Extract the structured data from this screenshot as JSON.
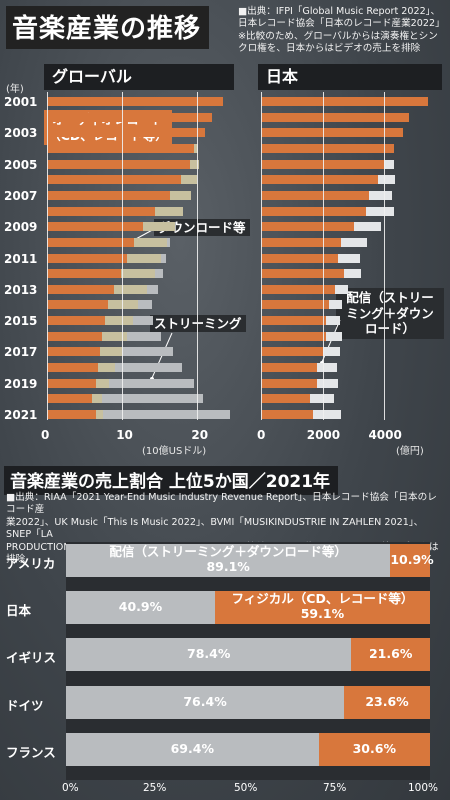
{
  "header": {
    "title": "音楽産業の推移",
    "source_lines": [
      "■出典：IFPI「Global Music Report 2022」、",
      "日本レコード協会「日本のレコード産業2022」",
      "※比較のため、グローバルからは演奏権とシン",
      "クロ権を、日本からはビデオの売上を排除"
    ]
  },
  "colors": {
    "orange": "#d8773c",
    "grey": "#b9bcbf",
    "light": "#e4e6e8",
    "tan": "#c7c09f",
    "panel": "#1d1f22"
  },
  "chart_data": [
    {
      "type": "bar",
      "orientation": "horizontal",
      "stacked": true,
      "title": "グローバル",
      "years": [
        "2001",
        "2002",
        "2003",
        "2004",
        "2005",
        "2006",
        "2007",
        "2008",
        "2009",
        "2010",
        "2011",
        "2012",
        "2013",
        "2014",
        "2015",
        "2016",
        "2017",
        "2018",
        "2019",
        "2020",
        "2021"
      ],
      "year_tick_labels": [
        "2001",
        "2003",
        "2005",
        "2007",
        "2009",
        "2011",
        "2013",
        "2015",
        "2017",
        "2019",
        "2021"
      ],
      "year_unit": "(年)",
      "xlim": [
        0,
        25
      ],
      "xticks": [
        0,
        10,
        20
      ],
      "xlabel": "(10億USドル)",
      "series": [
        {
          "name": "オーディオレコード（CD、レコード等）",
          "color": "#d8773c",
          "values": [
            23.4,
            22.0,
            21.0,
            19.6,
            19.0,
            17.8,
            16.3,
            14.4,
            12.8,
            11.6,
            10.7,
            9.8,
            8.9,
            8.1,
            7.7,
            7.3,
            7.1,
            6.8,
            6.5,
            6.0,
            6.5
          ]
        },
        {
          "name": "ダウンロード等",
          "color": "#c7c09f",
          "values": [
            0,
            0,
            0,
            0.5,
            1.2,
            2.1,
            2.9,
            3.7,
            4.2,
            4.3,
            4.5,
            4.6,
            4.4,
            4.0,
            3.7,
            3.3,
            2.9,
            2.3,
            1.8,
            1.3,
            1.0
          ]
        },
        {
          "name": "ストリーミング",
          "color": "#b9bcbf",
          "values": [
            0,
            0,
            0,
            0,
            0,
            0,
            0,
            0,
            0.2,
            0.4,
            0.6,
            1.0,
            1.4,
            1.9,
            2.7,
            4.6,
            6.7,
            8.8,
            11.3,
            13.4,
            16.9
          ]
        }
      ],
      "annotations": [
        "オーディオレコード（CD、レコード等）",
        "ダウンロード等",
        "ストリーミング"
      ]
    },
    {
      "type": "bar",
      "orientation": "horizontal",
      "stacked": true,
      "title": "日本",
      "xlim": [
        0,
        5800
      ],
      "xticks": [
        0,
        2000,
        4000
      ],
      "xlabel": "(億円)",
      "series": [
        {
          "name": "オーディオレコード",
          "color": "#d8773c",
          "values": [
            5400,
            4800,
            4600,
            4300,
            4000,
            3800,
            3500,
            3400,
            3000,
            2600,
            2500,
            2700,
            2400,
            2200,
            2100,
            2100,
            2000,
            1800,
            1800,
            1600,
            1700
          ]
        },
        {
          "name": "配信（ストリーミング＋ダウンロード）",
          "color": "#e4e6e8",
          "values": [
            0,
            0,
            0,
            0,
            300,
            550,
            750,
            900,
            900,
            850,
            700,
            550,
            420,
            440,
            470,
            530,
            570,
            650,
            700,
            780,
            900
          ]
        }
      ],
      "annotations": [
        "配信（ストリーミング＋ダウンロード）"
      ]
    },
    {
      "type": "bar",
      "orientation": "horizontal",
      "stacked": true,
      "title": "音楽産業の売上割合 上位5か国／2021年",
      "source_lines": [
        "■出典：RIAA「2021 Year-End Music Industry Revenue Report」、日本レコード協会「日本のレコード産",
        "業2022」、UK Music「This Is Music 2022」、BVMI「MUSIKINDUSTRIE IN ZAHLEN 2021」、SNEP「LA",
        "PRODUCTION : MUSICALE FRANÇAISE EN 2021」※比較のため配信とフィジカル以外のデータは排除"
      ],
      "categories": [
        "アメリカ",
        "日本",
        "イギリス",
        "ドイツ",
        "フランス"
      ],
      "xlim": [
        0,
        100
      ],
      "xtick_labels": [
        "0%",
        "25%",
        "50%",
        "75%",
        "100%"
      ],
      "series": [
        {
          "name": "配信（ストリーミング＋ダウンロード等）",
          "color": "#b9bcbf",
          "values": [
            89.1,
            40.9,
            78.4,
            76.4,
            69.4
          ],
          "labels": [
            "89.1%",
            "40.9%",
            "78.4%",
            "76.4%",
            "69.4%"
          ]
        },
        {
          "name": "フィジカル（CD、レコード等）",
          "color": "#d8773c",
          "values": [
            10.9,
            59.1,
            21.6,
            23.6,
            30.6
          ],
          "labels": [
            "10.9%",
            "59.1%",
            "21.6%",
            "23.6%",
            "30.6%"
          ]
        }
      ]
    }
  ]
}
